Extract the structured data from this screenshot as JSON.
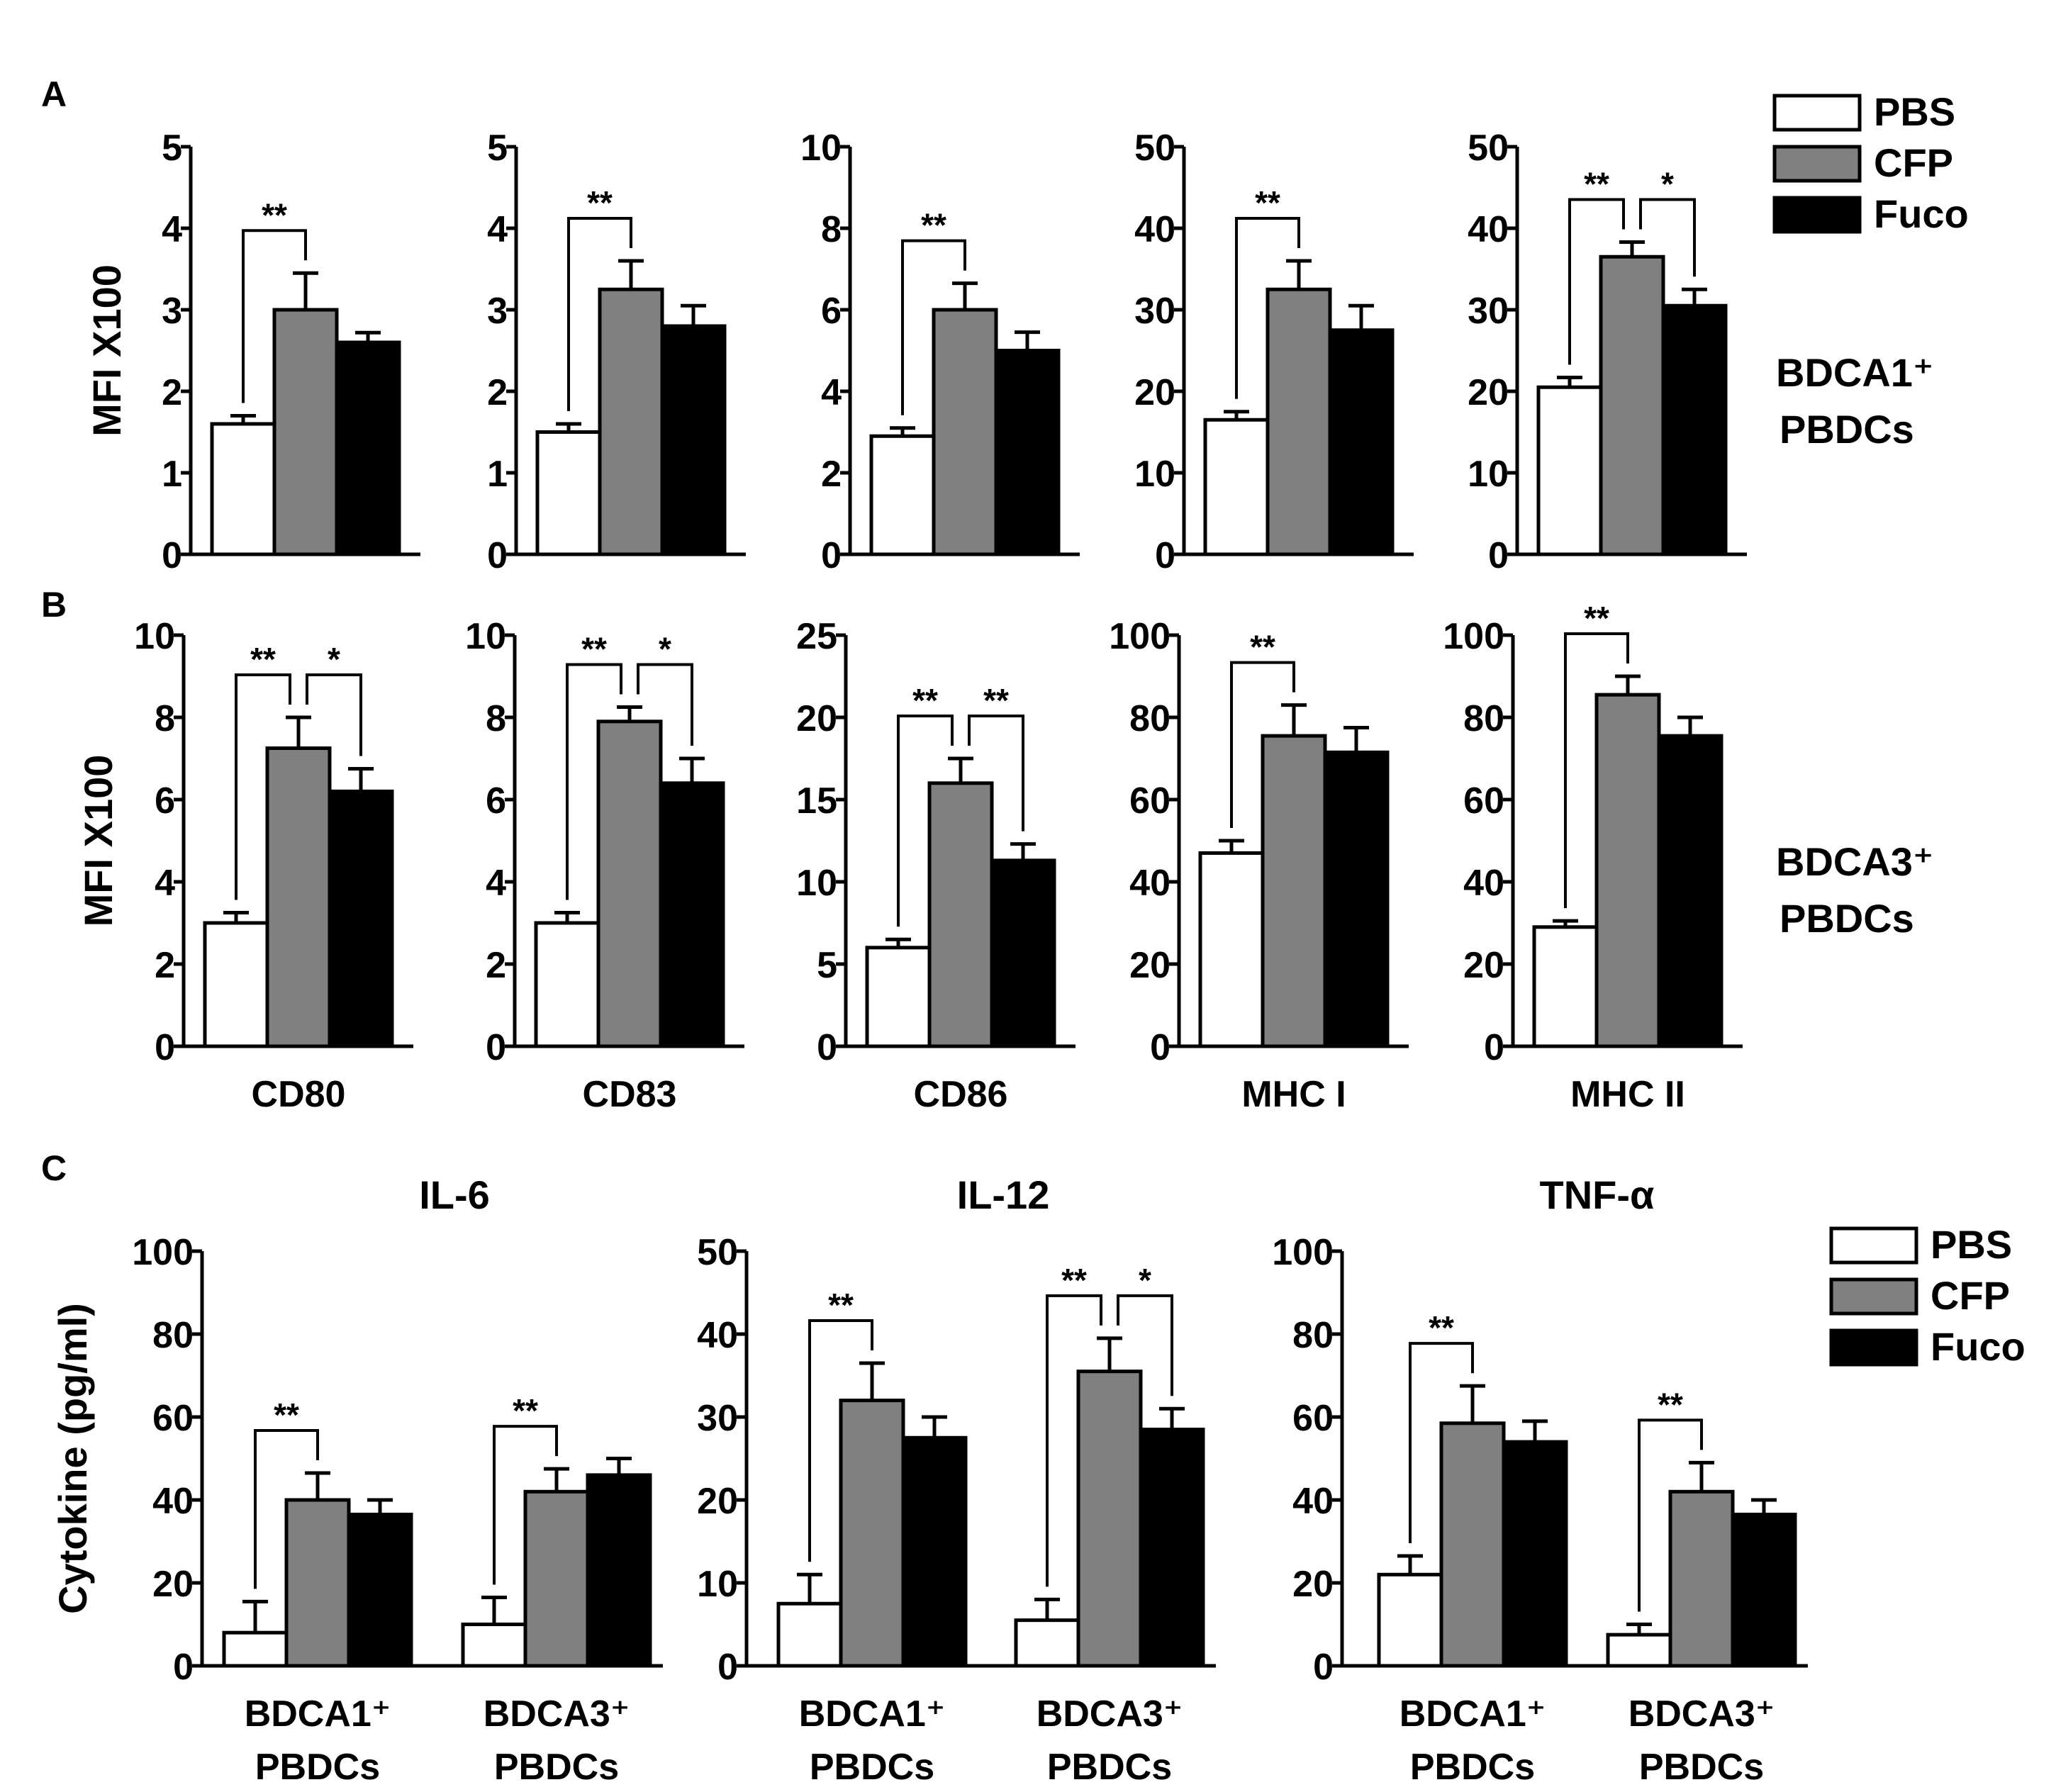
{
  "colors": {
    "PBS": "#ffffff",
    "CFP": "#808080",
    "Fuco": "#000000",
    "stroke": "#000000"
  },
  "chart_data": [
    {
      "type": "bar",
      "panel": "A",
      "ylabel": "MFI X100",
      "cell_label": [
        "BDCA1⁺",
        "PBDCs"
      ],
      "legend": [
        "PBS",
        "CFP",
        "Fuco"
      ],
      "subplots": [
        {
          "ylim": [
            0,
            5
          ],
          "ticks": [
            "0",
            "1",
            "2",
            "3",
            "4",
            "5"
          ],
          "values": [
            1.6,
            3.0,
            2.6
          ],
          "errors": [
            0.1,
            0.45,
            0.12
          ],
          "sig": [
            {
              "from": 0,
              "to": 1,
              "label": "**"
            }
          ]
        },
        {
          "ylim": [
            0,
            5
          ],
          "ticks": [
            "0",
            "1",
            "2",
            "3",
            "4",
            "5"
          ],
          "values": [
            1.5,
            3.25,
            2.8
          ],
          "errors": [
            0.1,
            0.35,
            0.25
          ],
          "sig": [
            {
              "from": 0,
              "to": 1,
              "label": "**"
            }
          ]
        },
        {
          "ylim": [
            0,
            10
          ],
          "ticks": [
            "0",
            "2",
            "4",
            "6",
            "8",
            "10"
          ],
          "values": [
            2.9,
            6.0,
            5.0
          ],
          "errors": [
            0.2,
            0.65,
            0.45
          ],
          "sig": [
            {
              "from": 0,
              "to": 1,
              "label": "**"
            }
          ]
        },
        {
          "ylim": [
            0,
            50
          ],
          "ticks": [
            "0",
            "10",
            "20",
            "30",
            "40",
            "50"
          ],
          "values": [
            16.5,
            32.5,
            27.5
          ],
          "errors": [
            1.0,
            3.5,
            3.0
          ],
          "sig": [
            {
              "from": 0,
              "to": 1,
              "label": "**"
            }
          ]
        },
        {
          "ylim": [
            0,
            50
          ],
          "ticks": [
            "0",
            "10",
            "20",
            "30",
            "40",
            "50"
          ],
          "values": [
            20.5,
            36.5,
            30.5
          ],
          "errors": [
            1.2,
            1.8,
            2.0
          ],
          "sig": [
            {
              "from": 0,
              "to": 1,
              "label": "**"
            },
            {
              "from": 1,
              "to": 2,
              "label": "*"
            }
          ]
        }
      ]
    },
    {
      "type": "bar",
      "panel": "B",
      "ylabel": "MFI X100",
      "cell_label": [
        "BDCA3⁺",
        "PBDCs"
      ],
      "subplots": [
        {
          "category": "CD80",
          "ylim": [
            0,
            10
          ],
          "ticks": [
            "0",
            "2",
            "4",
            "6",
            "8",
            "10"
          ],
          "values": [
            3.0,
            7.25,
            6.2
          ],
          "errors": [
            0.25,
            0.75,
            0.55
          ],
          "sig": [
            {
              "from": 0,
              "to": 1,
              "label": "**"
            },
            {
              "from": 1,
              "to": 2,
              "label": "*"
            }
          ]
        },
        {
          "category": "CD83",
          "ylim": [
            0,
            10
          ],
          "ticks": [
            "0",
            "2",
            "4",
            "6",
            "8",
            "10"
          ],
          "values": [
            3.0,
            7.9,
            6.4
          ],
          "errors": [
            0.25,
            0.35,
            0.6
          ],
          "sig": [
            {
              "from": 0,
              "to": 1,
              "label": "**"
            },
            {
              "from": 1,
              "to": 2,
              "label": "*"
            }
          ]
        },
        {
          "category": "CD86",
          "ylim": [
            0,
            25
          ],
          "ticks": [
            "0",
            "5",
            "10",
            "15",
            "20",
            "25"
          ],
          "values": [
            6.0,
            16.0,
            11.3
          ],
          "errors": [
            0.5,
            1.5,
            1.0
          ],
          "sig": [
            {
              "from": 0,
              "to": 1,
              "label": "**"
            },
            {
              "from": 1,
              "to": 2,
              "label": "**"
            }
          ]
        },
        {
          "category": "MHC I",
          "ylim": [
            0,
            100
          ],
          "ticks": [
            "0",
            "20",
            "40",
            "60",
            "80",
            "100"
          ],
          "values": [
            47,
            75.5,
            71.5
          ],
          "errors": [
            3,
            7.5,
            6
          ],
          "sig": [
            {
              "from": 0,
              "to": 1,
              "label": "**"
            }
          ]
        },
        {
          "category": "MHC II",
          "ylim": [
            0,
            100
          ],
          "ticks": [
            "0",
            "20",
            "40",
            "60",
            "80",
            "100"
          ],
          "values": [
            29,
            85.5,
            75.5
          ],
          "errors": [
            1.5,
            4.5,
            4.5
          ],
          "sig": [
            {
              "from": 0,
              "to": 1,
              "label": "**"
            }
          ]
        }
      ]
    },
    {
      "type": "bar",
      "panel": "C",
      "ylabel": "Cytokine (pg/ml)",
      "legend": [
        "PBS",
        "CFP",
        "Fuco"
      ],
      "subplots": [
        {
          "title": "IL-6",
          "ylim": [
            0,
            100
          ],
          "ticks": [
            "0",
            "20",
            "40",
            "60",
            "80",
            "100"
          ],
          "groups": [
            {
              "label": [
                "BDCA1⁺",
                "PBDCs"
              ],
              "values": [
                8,
                40,
                36.5
              ],
              "errors": [
                7.5,
                6.5,
                3.5
              ],
              "sig": [
                {
                  "from": 0,
                  "to": 1,
                  "label": "**"
                }
              ]
            },
            {
              "label": [
                "BDCA3⁺",
                "PBDCs"
              ],
              "values": [
                10,
                42,
                46
              ],
              "errors": [
                6.5,
                5.5,
                4
              ],
              "sig": [
                {
                  "from": 0,
                  "to": 1,
                  "label": "**"
                }
              ]
            }
          ]
        },
        {
          "title": "IL-12",
          "ylim": [
            0,
            50
          ],
          "ticks": [
            "0",
            "10",
            "20",
            "30",
            "40",
            "50"
          ],
          "groups": [
            {
              "label": [
                "BDCA1⁺",
                "PBDCs"
              ],
              "values": [
                7.5,
                32,
                27.5
              ],
              "errors": [
                3.5,
                4.5,
                2.5
              ],
              "sig": [
                {
                  "from": 0,
                  "to": 1,
                  "label": "**"
                }
              ]
            },
            {
              "label": [
                "BDCA3⁺",
                "PBDCs"
              ],
              "values": [
                5.5,
                35.5,
                28.5
              ],
              "errors": [
                2.5,
                4,
                2.5
              ],
              "sig": [
                {
                  "from": 0,
                  "to": 1,
                  "label": "**"
                },
                {
                  "from": 1,
                  "to": 2,
                  "label": "*"
                }
              ]
            }
          ]
        },
        {
          "title": "TNF-α",
          "ylim": [
            0,
            100
          ],
          "ticks": [
            "0",
            "20",
            "40",
            "60",
            "80",
            "100"
          ],
          "groups": [
            {
              "label": [
                "BDCA1⁺",
                "PBDCs"
              ],
              "values": [
                22,
                58.5,
                54
              ],
              "errors": [
                4.5,
                9,
                5
              ],
              "sig": [
                {
                  "from": 0,
                  "to": 1,
                  "label": "**"
                }
              ]
            },
            {
              "label": [
                "BDCA3⁺",
                "PBDCs"
              ],
              "values": [
                7.5,
                42,
                36.5
              ],
              "errors": [
                2.5,
                7,
                3.5
              ],
              "sig": [
                {
                  "from": 0,
                  "to": 1,
                  "label": "**"
                }
              ]
            }
          ]
        }
      ]
    }
  ]
}
